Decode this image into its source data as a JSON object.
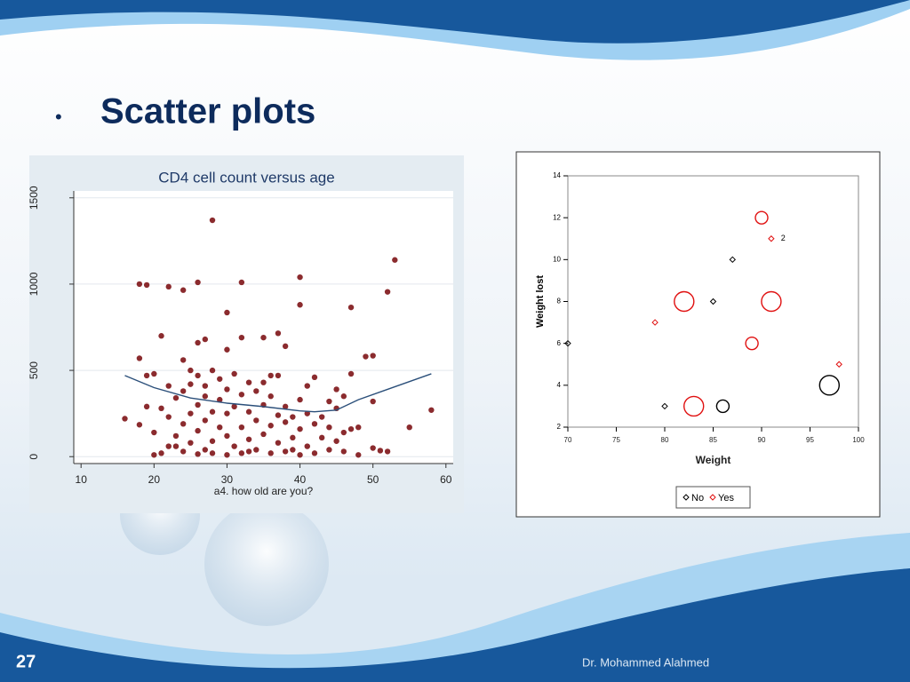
{
  "slide_title": "Scatter plots",
  "page_number": "27",
  "author": "Dr. Mohammed Alahmed",
  "chart_data": [
    {
      "type": "scatter",
      "title": "CD4 cell count versus age",
      "x_label": "a4. how old are you?",
      "xlim": [
        9,
        61
      ],
      "ylim": [
        -40,
        1540
      ],
      "xticks": [
        10,
        20,
        30,
        40,
        50,
        60
      ],
      "yticks": [
        0,
        500,
        1000,
        1500
      ],
      "grid": true,
      "series": [
        {
          "color": "#8b2b2e",
          "x": [
            16,
            18,
            18,
            19,
            18,
            28,
            53,
            52,
            40,
            40,
            47,
            32,
            26,
            24,
            22,
            30,
            37,
            38,
            58,
            55,
            49,
            50,
            50,
            51,
            20,
            20,
            20,
            21,
            21,
            21,
            22,
            22,
            22,
            23,
            23,
            24,
            24,
            24,
            24,
            25,
            25,
            25,
            26,
            26,
            26,
            26,
            26,
            27,
            27,
            27,
            27,
            27,
            28,
            28,
            28,
            28,
            29,
            29,
            29,
            30,
            30,
            30,
            30,
            30,
            31,
            31,
            31,
            32,
            32,
            32,
            32,
            33,
            33,
            33,
            34,
            34,
            34,
            35,
            35,
            35,
            35,
            36,
            36,
            36,
            37,
            37,
            37,
            38,
            38,
            38,
            39,
            39,
            40,
            40,
            40,
            41,
            41,
            42,
            42,
            42,
            43,
            43,
            44,
            44,
            45,
            45,
            45,
            46,
            46,
            46,
            47,
            47,
            48,
            48,
            19,
            19,
            23,
            25,
            33,
            36,
            39,
            41,
            44,
            50,
            52
          ],
          "values": [
            220,
            570,
            185,
            995,
            1000,
            1370,
            1140,
            955,
            1040,
            880,
            865,
            1010,
            1010,
            965,
            985,
            835,
            715,
            640,
            270,
            170,
            580,
            585,
            320,
            35,
            10,
            140,
            480,
            20,
            280,
            700,
            60,
            230,
            410,
            120,
            340,
            30,
            190,
            380,
            560,
            80,
            250,
            420,
            15,
            150,
            300,
            470,
            660,
            40,
            210,
            350,
            410,
            680,
            90,
            260,
            500,
            20,
            170,
            330,
            450,
            10,
            120,
            250,
            390,
            620,
            60,
            290,
            480,
            20,
            170,
            360,
            690,
            100,
            260,
            430,
            40,
            210,
            380,
            130,
            300,
            430,
            690,
            20,
            180,
            350,
            80,
            240,
            470,
            30,
            200,
            290,
            110,
            230,
            10,
            160,
            330,
            60,
            250,
            20,
            190,
            460,
            110,
            230,
            40,
            170,
            90,
            280,
            390,
            30,
            140,
            350,
            160,
            480,
            10,
            170,
            470,
            290,
            60,
            500,
            30,
            470,
            40,
            410,
            320,
            50,
            30
          ]
        },
        {
          "kind": "line",
          "color": "#2b4f7a",
          "x": [
            16,
            20,
            25,
            30,
            35,
            40,
            42,
            45,
            48,
            52,
            58
          ],
          "values": [
            470,
            400,
            340,
            310,
            290,
            265,
            260,
            270,
            330,
            390,
            480
          ]
        }
      ]
    },
    {
      "type": "scatter",
      "x_label": "Weight",
      "y_label": "Weight lost",
      "xlim": [
        70,
        100
      ],
      "ylim": [
        2,
        14
      ],
      "xticks": [
        70,
        75,
        80,
        85,
        90,
        95,
        100
      ],
      "yticks": [
        2,
        4,
        6,
        8,
        10,
        12,
        14
      ],
      "grid": false,
      "legend": "bottom",
      "series": [
        {
          "name": "No",
          "color": "#000000",
          "x": [
            70,
            80,
            85,
            86,
            87,
            97
          ],
          "values": [
            6,
            3,
            8,
            3,
            10,
            4
          ],
          "sizes": [
            1,
            1,
            1,
            2,
            1,
            3
          ]
        },
        {
          "name": "Yes",
          "color": "#e01010",
          "x": [
            79,
            82,
            83,
            89,
            90,
            91,
            91,
            98
          ],
          "values": [
            7,
            8,
            3,
            6,
            12,
            11,
            8,
            5
          ],
          "sizes": [
            1,
            3,
            3,
            2,
            2,
            1,
            3,
            1
          ]
        }
      ],
      "annotations": [
        {
          "text": "2",
          "x": 92,
          "y": 11
        }
      ]
    }
  ]
}
